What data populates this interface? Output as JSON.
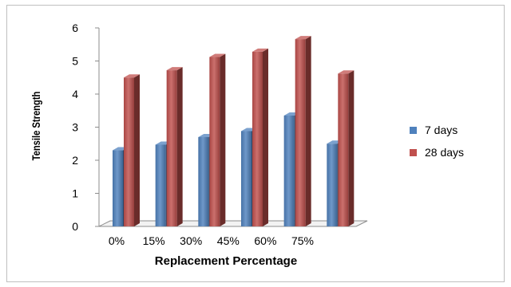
{
  "chart_data": {
    "type": "bar",
    "title": "",
    "xlabel": "Replacement Percentage",
    "ylabel": "Tensile Strength",
    "categories": [
      "0%",
      "15%",
      "30%",
      "45%",
      "60%",
      "75%"
    ],
    "series": [
      {
        "name": "7 days",
        "color": "#4f81bd",
        "values": [
          2.3,
          2.47,
          2.7,
          2.88,
          3.35,
          2.5
        ]
      },
      {
        "name": "28 days",
        "color": "#c0504d",
        "values": [
          4.5,
          4.72,
          5.12,
          5.28,
          5.66,
          4.62
        ]
      }
    ],
    "ylim": [
      0,
      6
    ],
    "yticks": [
      0,
      1,
      2,
      3,
      4,
      5,
      6
    ],
    "grid": false,
    "legend": "right",
    "style": "3d-column"
  }
}
